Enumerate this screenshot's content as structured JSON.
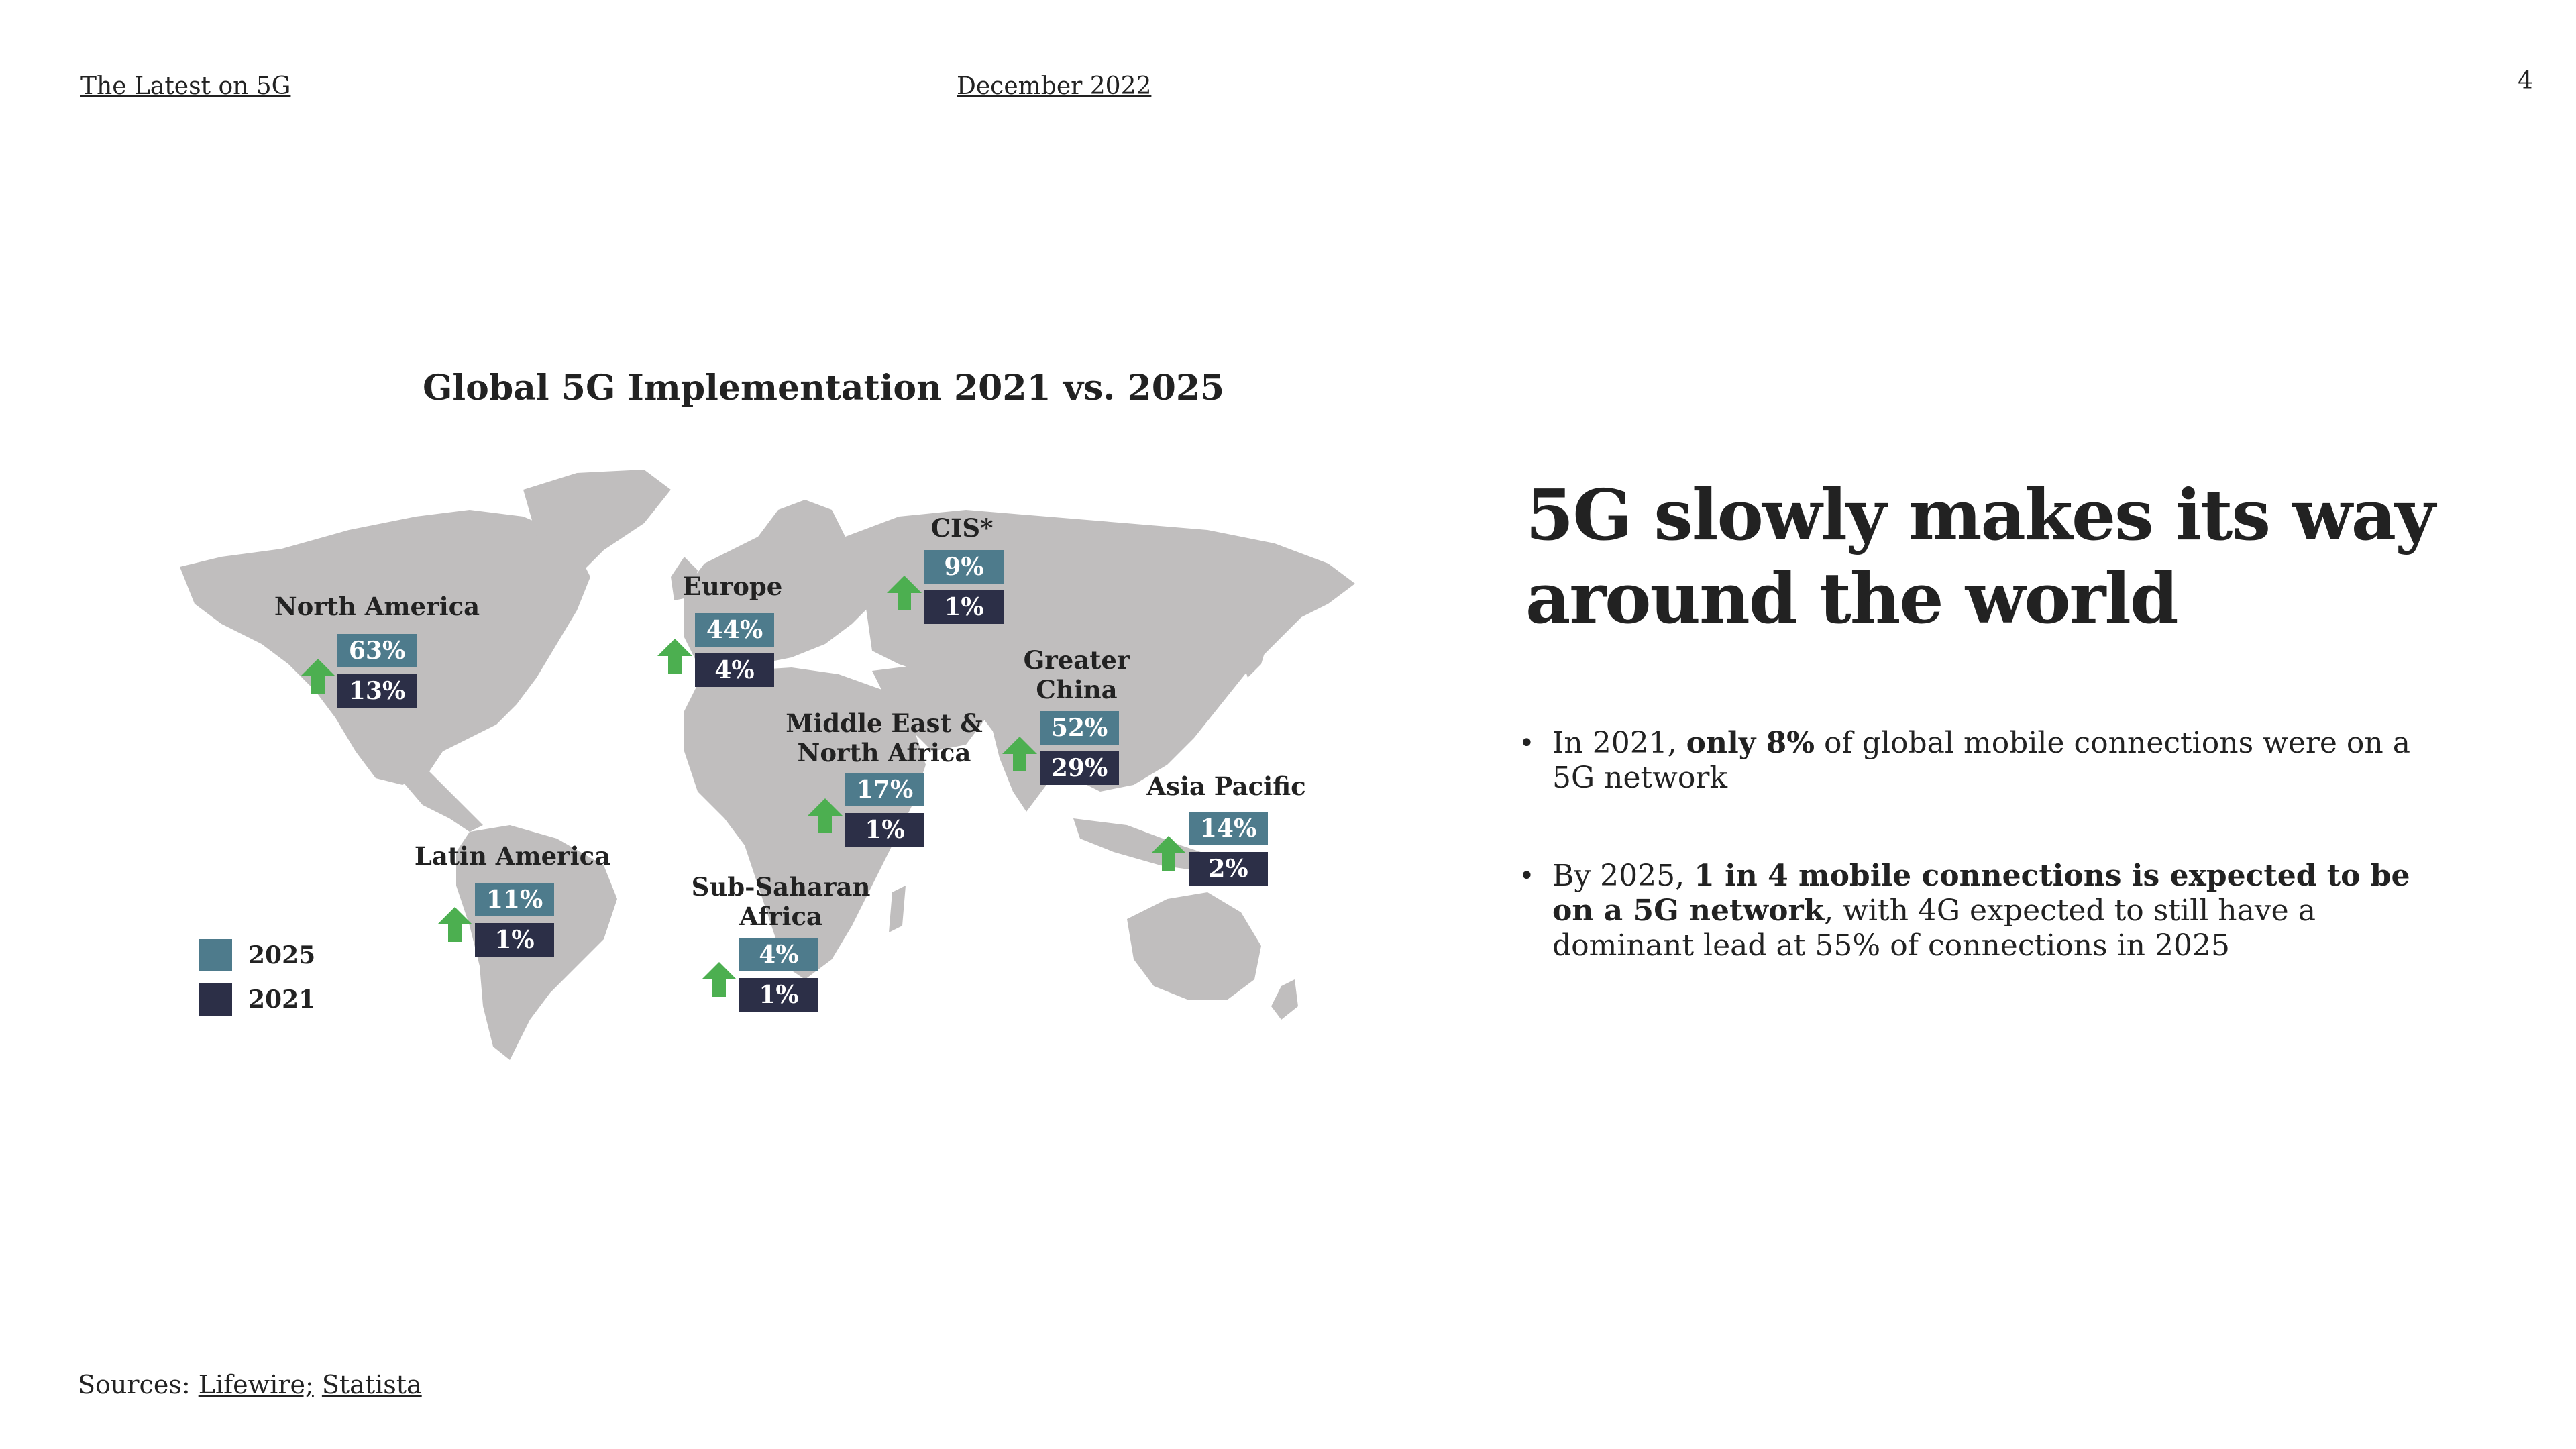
{
  "header": {
    "left": "The Latest on 5G",
    "center": "December 2022",
    "page_number": "4"
  },
  "map": {
    "title": "Global 5G Implementation 2021 vs. 2025",
    "colors": {
      "land": "#c0bebe",
      "y2025": "#4e7b8c",
      "y2021": "#2c2f47",
      "arrow": "#4caf50"
    },
    "legend": [
      {
        "label": "2025",
        "color": "#4e7b8c"
      },
      {
        "label": "2021",
        "color": "#2c2f47"
      }
    ],
    "regions": [
      {
        "name": "North America",
        "v2025": "63%",
        "v2021": "13%"
      },
      {
        "name": "Europe",
        "v2025": "44%",
        "v2021": "4%"
      },
      {
        "name": "CIS*",
        "v2025": "9%",
        "v2021": "1%"
      },
      {
        "name_line1": "Greater",
        "name_line2": "China",
        "v2025": "52%",
        "v2021": "29%"
      },
      {
        "name_line1": "Middle East &",
        "name_line2": "North Africa",
        "v2025": "17%",
        "v2021": "1%"
      },
      {
        "name": "Asia Pacific",
        "v2025": "14%",
        "v2021": "2%"
      },
      {
        "name": "Latin America",
        "v2025": "11%",
        "v2021": "1%"
      },
      {
        "name_line1": "Sub-Saharan",
        "name_line2": "Africa",
        "v2025": "4%",
        "v2021": "1%"
      }
    ]
  },
  "content": {
    "headline": "5G slowly makes its way around the world",
    "bullet1": {
      "pre": "In 2021, ",
      "bold": "only 8%",
      "post": " of global mobile connections were on a 5G network"
    },
    "bullet2": {
      "pre": "By 2025, ",
      "bold": "1 in 4 mobile connections is expected to be on a 5G network",
      "post": ", with 4G expected to still have a dominant lead at 55% of connections in 2025"
    }
  },
  "sources": {
    "label": "Sources: ",
    "link1": "Lifewire;",
    "link2": "Statista"
  }
}
